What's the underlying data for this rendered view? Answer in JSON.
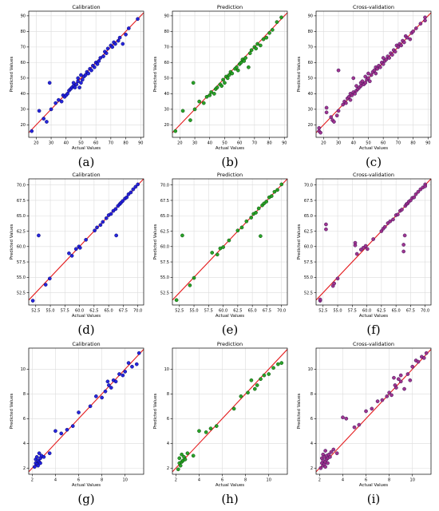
{
  "chart_data": [
    {
      "id": "a",
      "panel_label": "(a)",
      "type": "scatter",
      "title": "Calibration",
      "xlabel": "Actual Values",
      "ylabel": "Predicted Values",
      "xlim": [
        15,
        92
      ],
      "ylim": [
        12,
        93
      ],
      "xticks": [
        20,
        30,
        40,
        50,
        60,
        70,
        80,
        90
      ],
      "yticks": [
        20,
        30,
        40,
        50,
        60,
        70,
        80,
        90
      ],
      "tick_fmt": 0,
      "marker_color": "#1a1adb",
      "marker_edge": "#0b0b6b",
      "fit_line": [
        15,
        92
      ],
      "x": [
        17,
        22,
        25,
        27,
        29,
        30,
        33,
        35,
        37,
        38,
        39,
        40,
        41,
        42,
        43,
        44,
        45,
        45,
        46,
        47,
        48,
        48,
        49,
        50,
        50,
        51,
        52,
        53,
        54,
        55,
        56,
        57,
        58,
        59,
        60,
        61,
        62,
        63,
        65,
        66,
        67,
        68,
        70,
        71,
        72,
        73,
        75,
        76,
        78,
        80,
        82,
        88
      ],
      "y": [
        16,
        29,
        24,
        22,
        47,
        30,
        34,
        36,
        35,
        39,
        38,
        39,
        40,
        42,
        43,
        44,
        45,
        47,
        44,
        46,
        48,
        50,
        44,
        47,
        52,
        49,
        51,
        52,
        54,
        53,
        56,
        55,
        58,
        57,
        60,
        59,
        61,
        63,
        64,
        67,
        66,
        69,
        71,
        70,
        73,
        72,
        74,
        76,
        72,
        78,
        82,
        88
      ]
    },
    {
      "id": "b",
      "panel_label": "(b)",
      "type": "scatter",
      "title": "Prediction",
      "xlabel": "Actual Values",
      "ylabel": "Predicted Values",
      "xlim": [
        15,
        92
      ],
      "ylim": [
        12,
        93
      ],
      "xticks": [
        20,
        30,
        40,
        50,
        60,
        70,
        80,
        90
      ],
      "yticks": [
        20,
        30,
        40,
        50,
        60,
        70,
        80,
        90
      ],
      "tick_fmt": 0,
      "marker_color": "#1e9e1e",
      "marker_edge": "#0d4d0d",
      "fit_line": [
        15,
        92
      ],
      "x": [
        17,
        22,
        27,
        29,
        30,
        33,
        36,
        38,
        40,
        41,
        43,
        44,
        45,
        47,
        48,
        49,
        50,
        51,
        52,
        53,
        54,
        55,
        57,
        58,
        59,
        60,
        61,
        62,
        63,
        64,
        66,
        67,
        68,
        70,
        71,
        72,
        74,
        76,
        78,
        80,
        82,
        85,
        88
      ],
      "y": [
        16,
        29,
        23,
        47,
        30,
        35,
        34,
        38,
        39,
        41,
        40,
        43,
        44,
        46,
        45,
        49,
        47,
        51,
        50,
        52,
        54,
        53,
        56,
        57,
        55,
        59,
        60,
        62,
        61,
        63,
        57,
        66,
        68,
        70,
        69,
        72,
        71,
        75,
        76,
        79,
        81,
        86,
        89
      ]
    },
    {
      "id": "c",
      "panel_label": "(c)",
      "type": "scatter",
      "title": "Cross-validation",
      "xlabel": "Actual Values",
      "ylabel": "Predicted Values",
      "xlim": [
        15,
        92
      ],
      "ylim": [
        12,
        93
      ],
      "xticks": [
        20,
        30,
        40,
        50,
        60,
        70,
        80,
        90
      ],
      "yticks": [
        20,
        30,
        40,
        50,
        60,
        70,
        80,
        90
      ],
      "tick_fmt": 0,
      "marker_color": "#9a2a8a",
      "marker_edge": "#3c1a5a",
      "fit_line": [
        15,
        92
      ],
      "x": [
        17,
        17,
        18,
        22,
        22,
        25,
        26,
        27,
        29,
        30,
        30,
        33,
        34,
        35,
        36,
        37,
        38,
        38,
        39,
        40,
        40,
        41,
        42,
        42,
        43,
        44,
        45,
        45,
        46,
        47,
        48,
        48,
        49,
        50,
        50,
        51,
        52,
        53,
        54,
        55,
        55,
        56,
        57,
        58,
        59,
        60,
        60,
        61,
        62,
        63,
        64,
        65,
        66,
        67,
        68,
        69,
        70,
        71,
        72,
        73,
        74,
        75,
        76,
        78,
        79,
        80,
        82,
        85,
        88,
        88
      ],
      "y": [
        16,
        18,
        15,
        28,
        31,
        25,
        23,
        22,
        26,
        55,
        29,
        33,
        35,
        34,
        37,
        38,
        36,
        40,
        39,
        41,
        50,
        40,
        42,
        45,
        43,
        44,
        47,
        45,
        48,
        46,
        47,
        51,
        49,
        50,
        53,
        48,
        52,
        54,
        55,
        53,
        57,
        56,
        58,
        57,
        60,
        59,
        63,
        61,
        62,
        64,
        63,
        66,
        65,
        68,
        67,
        71,
        70,
        72,
        71,
        74,
        73,
        77,
        76,
        75,
        79,
        80,
        82,
        85,
        87,
        89
      ]
    },
    {
      "id": "d",
      "panel_label": "(d)",
      "type": "scatter",
      "title": "Calibration",
      "xlabel": "Actual Values",
      "ylabel": "Predicted Values",
      "xlim": [
        51.3,
        71.0
      ],
      "ylim": [
        50.5,
        71.0
      ],
      "xticks": [
        52.5,
        55.0,
        57.5,
        60.0,
        62.5,
        65.0,
        67.5,
        70.0
      ],
      "yticks": [
        52.5,
        55.0,
        57.5,
        60.0,
        62.5,
        65.0,
        67.5,
        70.0
      ],
      "tick_fmt": 1,
      "marker_color": "#1a1adb",
      "marker_edge": "#0b0b6b",
      "fit_line": [
        51.3,
        71.0
      ],
      "x": [
        52.0,
        53.0,
        54.2,
        54.9,
        58.2,
        58.7,
        59.4,
        59.9,
        60.1,
        61.1,
        62.6,
        63.0,
        63.6,
        64.0,
        64.6,
        65.0,
        65.4,
        65.8,
        66.2,
        66.3,
        66.6,
        66.9,
        67.1,
        67.4,
        67.8,
        68.1,
        68.4,
        68.8,
        69.2,
        69.6,
        70.0
      ],
      "y": [
        51.2,
        61.8,
        53.8,
        54.8,
        58.9,
        58.5,
        59.6,
        60.0,
        59.8,
        61.1,
        62.6,
        63.1,
        63.5,
        64.0,
        64.6,
        65.1,
        65.3,
        65.8,
        66.1,
        61.8,
        66.6,
        66.9,
        67.1,
        67.4,
        67.8,
        68.0,
        68.5,
        68.8,
        69.3,
        69.7,
        70.1
      ]
    },
    {
      "id": "e",
      "panel_label": "(e)",
      "type": "scatter",
      "title": "Prediction",
      "xlabel": "Actual Values",
      "ylabel": "Predicted Values",
      "xlim": [
        51.3,
        71.0
      ],
      "ylim": [
        50.5,
        71.0
      ],
      "xticks": [
        52.5,
        55.0,
        57.5,
        60.0,
        62.5,
        65.0,
        67.5,
        70.0
      ],
      "yticks": [
        52.5,
        55.0,
        57.5,
        60.0,
        62.5,
        65.0,
        67.5,
        70.0
      ],
      "tick_fmt": 1,
      "marker_color": "#1e9e1e",
      "marker_edge": "#0d4d0d",
      "fit_line": [
        51.3,
        71.0
      ],
      "x": [
        52.0,
        53.0,
        54.3,
        55.0,
        58.1,
        59.0,
        59.5,
        60.0,
        61.0,
        62.5,
        63.2,
        64.0,
        64.8,
        65.2,
        65.6,
        66.1,
        66.4,
        66.7,
        67.0,
        67.4,
        67.9,
        68.3,
        68.8,
        69.3,
        70.0
      ],
      "y": [
        51.3,
        61.8,
        53.7,
        54.9,
        59.0,
        58.7,
        59.7,
        59.9,
        61.0,
        62.6,
        63.1,
        64.1,
        64.7,
        65.3,
        65.5,
        66.2,
        61.7,
        66.7,
        67.0,
        67.3,
        68.0,
        68.2,
        68.9,
        69.2,
        70.1
      ]
    },
    {
      "id": "f",
      "panel_label": "(f)",
      "type": "scatter",
      "title": "Cross-validation",
      "xlabel": "Actual Values",
      "ylabel": "Predicted Values",
      "xlim": [
        51.3,
        71.0
      ],
      "ylim": [
        50.5,
        71.0
      ],
      "xticks": [
        52.5,
        55.0,
        57.5,
        60.0,
        62.5,
        65.0,
        67.5,
        70.0
      ],
      "yticks": [
        52.5,
        55.0,
        57.5,
        60.0,
        62.5,
        65.0,
        67.5,
        70.0
      ],
      "tick_fmt": 1,
      "marker_color": "#9a2a8a",
      "marker_edge": "#3c1a5a",
      "fit_line": [
        51.3,
        71.0
      ],
      "x": [
        52.0,
        52.0,
        53.0,
        53.0,
        54.2,
        54.4,
        55.0,
        58.0,
        58.0,
        58.3,
        59.0,
        59.4,
        59.8,
        60.1,
        61.1,
        62.5,
        62.8,
        63.1,
        63.6,
        64.0,
        64.5,
        65.0,
        65.3,
        65.7,
        66.0,
        66.3,
        66.3,
        66.5,
        66.6,
        66.8,
        67.0,
        67.2,
        67.5,
        67.8,
        68.1,
        68.4,
        68.8,
        69.2,
        69.6,
        70.0,
        70.0
      ],
      "y": [
        51.2,
        51.4,
        62.8,
        63.6,
        53.6,
        54.0,
        54.8,
        60.6,
        60.2,
        58.8,
        59.5,
        59.8,
        60.1,
        59.6,
        61.2,
        62.5,
        62.9,
        63.2,
        63.8,
        64.1,
        64.4,
        65.1,
        65.2,
        65.8,
        66.0,
        59.2,
        60.3,
        61.8,
        66.6,
        66.9,
        67.0,
        67.3,
        67.5,
        67.9,
        68.0,
        68.5,
        68.9,
        69.3,
        69.6,
        70.1,
        69.8
      ]
    },
    {
      "id": "g",
      "panel_label": "(g)",
      "type": "scatter",
      "title": "Calibration",
      "xlabel": "Actual Values",
      "ylabel": "Predicted Values",
      "xlim": [
        1.7,
        11.6
      ],
      "ylim": [
        1.5,
        11.7
      ],
      "xticks": [
        2,
        4,
        6,
        8,
        10
      ],
      "yticks": [
        2,
        4,
        6,
        8,
        10
      ],
      "tick_fmt": 0,
      "marker_color": "#1a1adb",
      "marker_edge": "#0b0b6b",
      "fit_line": [
        1.7,
        11.6
      ],
      "x": [
        2.2,
        2.3,
        2.3,
        2.4,
        2.4,
        2.5,
        2.5,
        2.6,
        2.6,
        2.7,
        2.7,
        2.8,
        3.0,
        3.5,
        4.0,
        4.5,
        5.0,
        5.5,
        6.0,
        7.0,
        7.5,
        8.0,
        8.3,
        8.5,
        8.6,
        8.8,
        9.0,
        9.2,
        9.5,
        9.8,
        10.0,
        10.3,
        10.6,
        11.0,
        11.2
      ],
      "y": [
        2.1,
        2.4,
        2.7,
        2.3,
        2.9,
        2.2,
        2.6,
        2.5,
        3.2,
        2.4,
        2.8,
        3.0,
        2.9,
        3.2,
        5.0,
        4.8,
        5.1,
        5.4,
        6.5,
        7.0,
        7.8,
        7.7,
        8.2,
        9.0,
        8.7,
        8.5,
        9.1,
        9.0,
        9.6,
        9.5,
        9.8,
        10.5,
        10.2,
        10.4,
        11.3
      ]
    },
    {
      "id": "h",
      "panel_label": "(h)",
      "type": "scatter",
      "title": "Prediction",
      "xlabel": "Actual Values",
      "ylabel": "Predicted Values",
      "xlim": [
        1.7,
        11.6
      ],
      "ylim": [
        1.5,
        11.7
      ],
      "xticks": [
        2,
        4,
        6,
        8,
        10
      ],
      "yticks": [
        2,
        4,
        6,
        8,
        10
      ],
      "tick_fmt": 0,
      "marker_color": "#1e9e1e",
      "marker_edge": "#0d4d0d",
      "fit_line": [
        1.7,
        11.6
      ],
      "x": [
        2.2,
        2.3,
        2.3,
        2.4,
        2.5,
        2.5,
        2.6,
        2.7,
        2.8,
        3.0,
        3.5,
        4.0,
        4.6,
        5.0,
        5.5,
        7.0,
        7.6,
        8.2,
        8.5,
        8.8,
        9.0,
        9.3,
        9.6,
        10.0,
        10.4,
        10.8,
        11.1
      ],
      "y": [
        1.9,
        2.4,
        2.8,
        2.2,
        2.5,
        3.1,
        2.6,
        2.9,
        2.7,
        3.2,
        3.0,
        5.0,
        4.9,
        5.2,
        5.4,
        6.8,
        7.8,
        8.1,
        9.1,
        8.4,
        8.7,
        9.2,
        9.5,
        9.6,
        10.1,
        10.4,
        10.5
      ]
    },
    {
      "id": "i",
      "panel_label": "(i)",
      "type": "scatter",
      "title": "Cross-validation",
      "xlabel": "Actual Values",
      "ylabel": "Predicted Values",
      "xlim": [
        1.7,
        11.6
      ],
      "ylim": [
        1.5,
        11.7
      ],
      "xticks": [
        2,
        4,
        6,
        8,
        10
      ],
      "yticks": [
        2,
        4,
        6,
        8,
        10
      ],
      "tick_fmt": 0,
      "marker_color": "#9a2a8a",
      "marker_edge": "#3c1a5a",
      "fit_line": [
        1.7,
        11.6
      ],
      "x": [
        2.1,
        2.2,
        2.2,
        2.3,
        2.3,
        2.3,
        2.4,
        2.4,
        2.5,
        2.5,
        2.5,
        2.6,
        2.6,
        2.7,
        2.7,
        2.8,
        2.9,
        3.0,
        3.2,
        3.5,
        4.0,
        4.3,
        5.0,
        5.4,
        6.0,
        6.5,
        7.0,
        7.4,
        7.8,
        8.0,
        8.2,
        8.4,
        8.5,
        8.6,
        8.8,
        9.0,
        9.0,
        9.3,
        9.6,
        9.8,
        10.0,
        10.3,
        10.5,
        10.8,
        11.0,
        11.2
      ],
      "y": [
        2.0,
        2.4,
        2.8,
        2.2,
        2.6,
        3.1,
        2.3,
        2.9,
        2.1,
        2.5,
        3.4,
        2.7,
        3.0,
        2.4,
        2.8,
        3.1,
        2.9,
        3.3,
        3.5,
        3.2,
        6.1,
        6.0,
        5.3,
        5.5,
        6.6,
        6.8,
        7.4,
        7.5,
        7.8,
        8.1,
        7.9,
        9.3,
        8.7,
        8.5,
        9.2,
        9.0,
        9.5,
        8.4,
        9.6,
        9.1,
        10.2,
        10.7,
        10.6,
        11.0,
        10.9,
        11.3
      ]
    }
  ]
}
